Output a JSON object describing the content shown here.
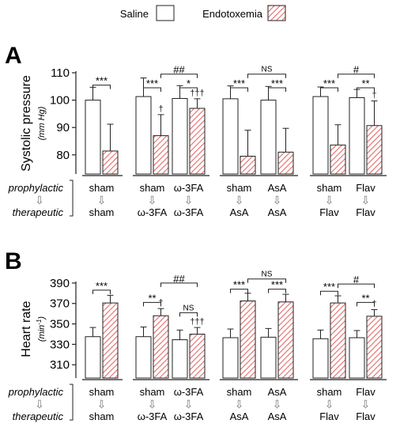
{
  "legend": {
    "items": [
      {
        "label": "Saline",
        "pattern": "white"
      },
      {
        "label": "Endotoxemia",
        "pattern": "hatch"
      }
    ]
  },
  "colors": {
    "hatch": "#e46a6a",
    "outline": "#222222",
    "white": "#ffffff",
    "arrow": "#cccccc"
  },
  "chart_data": [
    {
      "panel": "A",
      "type": "bar",
      "ylabel": "Systolic pressure",
      "yunit": "(mm Hg)",
      "ylim": [
        73,
        110
      ],
      "yticks": [
        80,
        90,
        100,
        110
      ],
      "row_labels": {
        "prophylactic": "prophylactic",
        "therapeutic": "therapeutic"
      },
      "groups": [
        {
          "prophylactic": [
            {
              "label": "sham",
              "bars": [
                0,
                1
              ]
            }
          ],
          "therapeutic": [
            {
              "label": "sham",
              "bars": [
                0,
                1
              ]
            }
          ]
        },
        {
          "prophylactic": [
            {
              "label": "sham",
              "bars": [
                2,
                3
              ]
            },
            {
              "label": "ω-3FA",
              "bars": [
                4,
                5
              ]
            }
          ],
          "therapeutic": [
            {
              "label": "ω-3FA",
              "bars": [
                2,
                3
              ]
            },
            {
              "label": "ω-3FA",
              "bars": [
                4,
                5
              ]
            }
          ]
        },
        {
          "prophylactic": [
            {
              "label": "sham",
              "bars": [
                6,
                7
              ]
            },
            {
              "label": "AsA",
              "bars": [
                8,
                9
              ]
            }
          ],
          "therapeutic": [
            {
              "label": "AsA",
              "bars": [
                6,
                7
              ]
            },
            {
              "label": "AsA",
              "bars": [
                8,
                9
              ]
            }
          ]
        },
        {
          "prophylactic": [
            {
              "label": "sham",
              "bars": [
                10,
                11
              ]
            },
            {
              "label": "Flav",
              "bars": [
                12,
                13
              ]
            }
          ],
          "therapeutic": [
            {
              "label": "Flav",
              "bars": [
                10,
                11
              ]
            },
            {
              "label": "Flav",
              "bars": [
                12,
                13
              ]
            }
          ]
        }
      ],
      "series": [
        {
          "name": "Saline",
          "values": [
            100.0,
            101.3,
            100.6,
            100.5,
            100.0,
            101.3,
            100.9
          ]
        },
        {
          "name": "Endotoxemia",
          "values": [
            81.4,
            87.0,
            97.0,
            79.5,
            81.0,
            83.6,
            90.7
          ]
        }
      ],
      "errors": {
        "Saline": [
          4.7,
          6.8,
          4.7,
          4.7,
          5.0,
          3.5,
          3.0
        ],
        "Endotoxemia": [
          9.8,
          7.7,
          3.5,
          9.5,
          8.7,
          7.4,
          9.0
        ]
      },
      "marks_above_hatched": [
        "",
        "†",
        "†††",
        "",
        "",
        "",
        "†"
      ],
      "brackets": [
        {
          "from": 0,
          "to": 1,
          "label": "***",
          "level": 105.5
        },
        {
          "from": 2,
          "to": 3,
          "label": "***",
          "level": 104.5
        },
        {
          "from": 4,
          "to": 5,
          "label": "*",
          "level": 104.5
        },
        {
          "from": 3,
          "to": 5,
          "label": "##",
          "level": 109.5
        },
        {
          "from": 6,
          "to": 7,
          "label": "***",
          "level": 104.5
        },
        {
          "from": 8,
          "to": 9,
          "label": "***",
          "level": 104.5
        },
        {
          "from": 7,
          "to": 9,
          "label": "NS",
          "level": 109.5
        },
        {
          "from": 10,
          "to": 11,
          "label": "***",
          "level": 104.5
        },
        {
          "from": 12,
          "to": 13,
          "label": "**",
          "level": 104.5
        },
        {
          "from": 11,
          "to": 13,
          "label": "#",
          "level": 109.5
        }
      ]
    },
    {
      "panel": "B",
      "type": "bar",
      "ylabel": "Heart rate",
      "yunit": "(min-1)",
      "ylim": [
        297,
        393
      ],
      "yticks": [
        310,
        330,
        350,
        370,
        390
      ],
      "row_labels": {
        "prophylactic": "prophylactic",
        "therapeutic": "therapeutic"
      },
      "groups": [
        {
          "prophylactic": [
            {
              "label": "sham",
              "bars": [
                0,
                1
              ]
            }
          ],
          "therapeutic": [
            {
              "label": "sham",
              "bars": [
                0,
                1
              ]
            }
          ]
        },
        {
          "prophylactic": [
            {
              "label": "sham",
              "bars": [
                2,
                3
              ]
            },
            {
              "label": "ω-3FA",
              "bars": [
                4,
                5
              ]
            }
          ],
          "therapeutic": [
            {
              "label": "ω-3FA",
              "bars": [
                2,
                3
              ]
            },
            {
              "label": "ω-3FA",
              "bars": [
                4,
                5
              ]
            }
          ]
        },
        {
          "prophylactic": [
            {
              "label": "sham",
              "bars": [
                6,
                7
              ]
            },
            {
              "label": "AsA",
              "bars": [
                8,
                9
              ]
            }
          ],
          "therapeutic": [
            {
              "label": "AsA",
              "bars": [
                6,
                7
              ]
            },
            {
              "label": "AsA",
              "bars": [
                8,
                9
              ]
            }
          ]
        },
        {
          "prophylactic": [
            {
              "label": "sham",
              "bars": [
                10,
                11
              ]
            },
            {
              "label": "Flav",
              "bars": [
                12,
                13
              ]
            }
          ],
          "therapeutic": [
            {
              "label": "Flav",
              "bars": [
                10,
                11
              ]
            },
            {
              "label": "Flav",
              "bars": [
                12,
                13
              ]
            }
          ]
        }
      ],
      "series": [
        {
          "name": "Saline",
          "values": [
            337.5,
            337.5,
            334.5,
            336.5,
            337.0,
            335.5,
            336.5
          ]
        },
        {
          "name": "Endotoxemia",
          "values": [
            370.5,
            358.0,
            340.0,
            372.5,
            371.5,
            370.5,
            357.5
          ]
        }
      ],
      "errors": {
        "Saline": [
          9.0,
          9.5,
          9.5,
          8.5,
          8.5,
          8.5,
          7.0
        ],
        "Endotoxemia": [
          7.5,
          7.0,
          6.5,
          7.5,
          7.5,
          7.0,
          6.5
        ]
      },
      "marks_above_hatched": [
        "",
        "†",
        "†††",
        "",
        "",
        "",
        "†"
      ],
      "brackets": [
        {
          "from": 0,
          "to": 1,
          "label": "***",
          "level": 383
        },
        {
          "from": 2,
          "to": 3,
          "label": "**",
          "level": 371
        },
        {
          "from": 4,
          "to": 5,
          "label": "NS",
          "level": 361
        },
        {
          "from": 3,
          "to": 5,
          "label": "##",
          "level": 390
        },
        {
          "from": 6,
          "to": 7,
          "label": "***",
          "level": 384
        },
        {
          "from": 8,
          "to": 9,
          "label": "***",
          "level": 384
        },
        {
          "from": 7,
          "to": 9,
          "label": "NS",
          "level": 394
        },
        {
          "from": 10,
          "to": 11,
          "label": "***",
          "level": 382
        },
        {
          "from": 12,
          "to": 13,
          "label": "**",
          "level": 371
        },
        {
          "from": 11,
          "to": 13,
          "label": "#",
          "level": 389
        }
      ]
    }
  ]
}
